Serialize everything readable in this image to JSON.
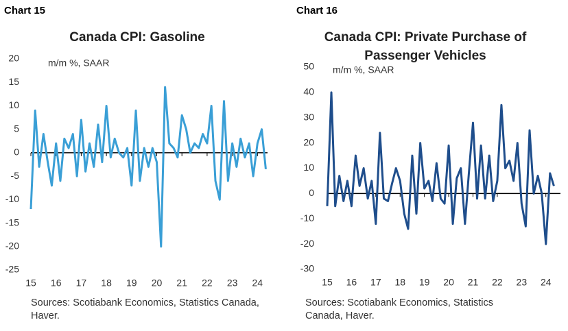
{
  "chart_data": [
    {
      "type": "line",
      "chart_label": "Chart 15",
      "title": "Canada CPI: Gasoline",
      "annotation": "m/m %, SAAR",
      "source": "Sources: Scotiabank Economics, Statistics Canada, Haver.",
      "color": "#3a9fd6",
      "x": [
        15,
        15.17,
        15.33,
        15.5,
        15.67,
        15.83,
        16,
        16.17,
        16.33,
        16.5,
        16.67,
        16.83,
        17,
        17.17,
        17.33,
        17.5,
        17.67,
        17.83,
        18,
        18.17,
        18.33,
        18.5,
        18.67,
        18.83,
        19,
        19.17,
        19.33,
        19.5,
        19.67,
        19.83,
        20,
        20.17,
        20.33,
        20.5,
        20.67,
        20.83,
        21,
        21.17,
        21.33,
        21.5,
        21.67,
        21.83,
        22,
        22.17,
        22.33,
        22.5,
        22.67,
        22.83,
        23,
        23.17,
        23.33,
        23.5,
        23.67,
        23.83,
        24,
        24.17,
        24.33
      ],
      "values": [
        -12,
        9,
        -3,
        4,
        -2,
        -7,
        2,
        -6,
        3,
        1,
        4,
        -5,
        7,
        -4,
        2,
        -3,
        6,
        -2,
        10,
        -1,
        3,
        0,
        -1,
        1,
        -7,
        9,
        -6,
        1,
        -3,
        1,
        -2,
        -20,
        14,
        2,
        1,
        -1,
        8,
        5,
        0,
        2,
        1,
        4,
        2,
        10,
        -6,
        -10,
        11,
        -6,
        2,
        -3,
        3,
        -1,
        2,
        -5,
        2,
        5,
        -3.5
      ],
      "xlim": [
        15,
        24.4
      ],
      "xticks": [
        15,
        16,
        17,
        18,
        19,
        20,
        21,
        22,
        23,
        24
      ],
      "ylim": [
        -25,
        20
      ],
      "yticks": [
        20,
        15,
        10,
        5,
        0,
        -5,
        -10,
        -15,
        -20,
        -25
      ]
    },
    {
      "type": "line",
      "chart_label": "Chart 16",
      "title": "Canada CPI: Private Purchase of Passenger Vehicles",
      "annotation": "m/m %, SAAR",
      "source": "Sources: Scotiabank Economics, Statistics Canada, Haver.",
      "color": "#1f4e8c",
      "x": [
        15,
        15.17,
        15.33,
        15.5,
        15.67,
        15.83,
        16,
        16.17,
        16.33,
        16.5,
        16.67,
        16.83,
        17,
        17.17,
        17.33,
        17.5,
        17.67,
        17.83,
        18,
        18.17,
        18.33,
        18.5,
        18.67,
        18.83,
        19,
        19.17,
        19.33,
        19.5,
        19.67,
        19.83,
        20,
        20.17,
        20.33,
        20.5,
        20.67,
        20.83,
        21,
        21.17,
        21.33,
        21.5,
        21.67,
        21.83,
        22,
        22.17,
        22.33,
        22.5,
        22.67,
        22.83,
        23,
        23.17,
        23.33,
        23.5,
        23.67,
        23.83,
        24,
        24.17,
        24.33
      ],
      "values": [
        -5,
        40,
        -5,
        7,
        -3,
        5,
        -5,
        15,
        3,
        10,
        -2,
        5,
        -12,
        24,
        -2,
        -3,
        4,
        10,
        5,
        -8,
        -14,
        15,
        -8,
        20,
        2,
        5,
        -3,
        12,
        -2,
        -4,
        19,
        -12,
        6,
        10,
        -12,
        8,
        28,
        -2,
        19,
        -2,
        15,
        -3,
        5,
        35,
        10,
        13,
        5,
        20,
        -4,
        -13,
        25,
        0,
        7,
        0,
        -20,
        8,
        3
      ],
      "xlim": [
        15,
        24.6
      ],
      "xticks": [
        15,
        16,
        17,
        18,
        19,
        20,
        21,
        22,
        23,
        24
      ],
      "ylim": [
        -30,
        50
      ],
      "yticks": [
        50,
        40,
        30,
        20,
        10,
        0,
        -10,
        -20,
        -30
      ]
    }
  ]
}
